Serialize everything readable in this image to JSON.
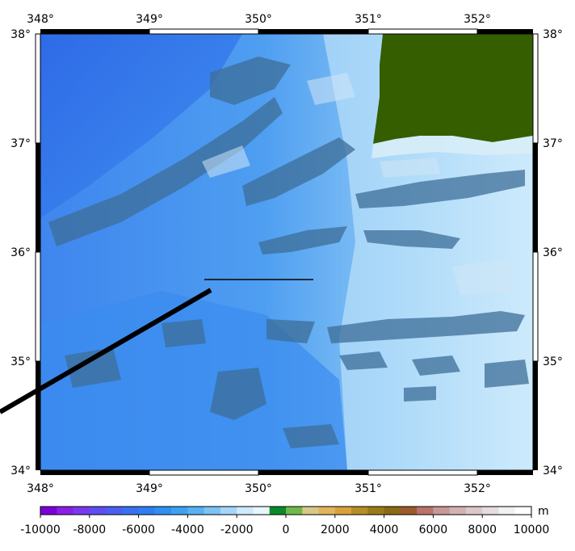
{
  "map": {
    "lon_labels": [
      "348°",
      "349°",
      "350°",
      "351°",
      "352°"
    ],
    "lat_labels": [
      "38°",
      "37°",
      "36°",
      "35°",
      "34°"
    ],
    "colors": {
      "land": "#355e00",
      "deep_ocean": "#2f6fe8",
      "mid_ocean": "#4da3f0",
      "shallow_ocean": "#bfe4fb",
      "ridge_shadow": "#3b6f9a",
      "profile_line": "#000000"
    }
  },
  "colorbar": {
    "unit": "m",
    "tick_labels": [
      "-10000",
      "-8000",
      "-6000",
      "-4000",
      "-2000",
      "0",
      "2000",
      "4000",
      "6000",
      "8000",
      "10000"
    ],
    "colors": [
      "#7a00d9",
      "#8a1ee6",
      "#7a38ee",
      "#5f4cf2",
      "#4a5ff0",
      "#3a6ff0",
      "#2f7ef2",
      "#2f8ff2",
      "#3ea0f2",
      "#58b1f2",
      "#7cc3f4",
      "#a4d6f8",
      "#cfeafb",
      "#e9f6fd",
      "#0a8a2a",
      "#6fb84c",
      "#d6c88a",
      "#e2b35c",
      "#d8a23a",
      "#b58e28",
      "#9a7a1a",
      "#8a6a14",
      "#9a5a2e",
      "#b8746a",
      "#c89898",
      "#d4b2b2",
      "#dcc8c8",
      "#e6dede",
      "#f2f0f0",
      "#ffffff"
    ]
  }
}
